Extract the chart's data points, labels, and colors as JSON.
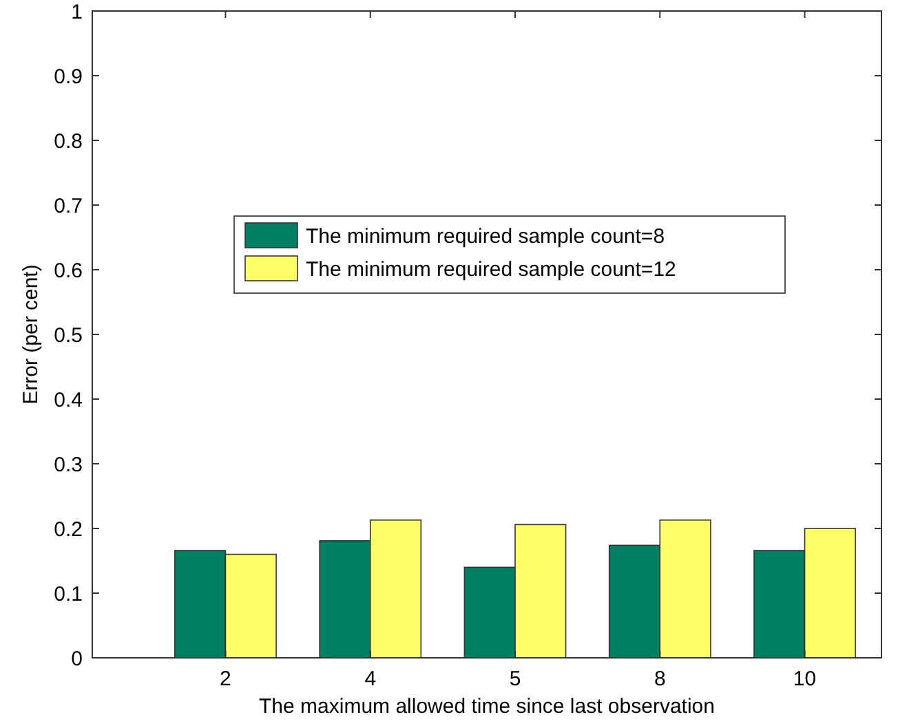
{
  "chart_data": {
    "type": "bar",
    "xlabel": "The maximum allowed time since last observation",
    "ylabel": "Error (per cent)",
    "categories": [
      "2",
      "4",
      "5",
      "8",
      "10"
    ],
    "series": [
      {
        "name": "The minimum required sample count=8",
        "color": "#007f62",
        "values": [
          0.166,
          0.181,
          0.14,
          0.174,
          0.166
        ]
      },
      {
        "name": "The minimum required sample count=12",
        "color": "#ffff66",
        "values": [
          0.16,
          0.213,
          0.206,
          0.213,
          0.2
        ]
      }
    ],
    "ylim": [
      0,
      1
    ],
    "yticks": [
      0,
      0.1,
      0.2,
      0.3,
      0.4,
      0.5,
      0.6,
      0.7,
      0.8,
      0.9,
      1
    ],
    "grid": false,
    "legend": "top"
  }
}
